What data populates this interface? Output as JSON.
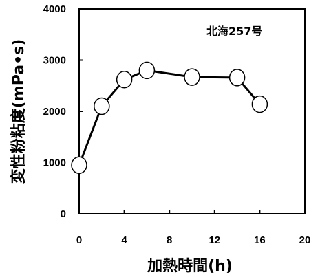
{
  "chart_data": {
    "type": "line",
    "annotation": "北海257号",
    "xlabel": "加熱時間(h)",
    "ylabel": "変性粉粘度(mPa•s)",
    "xlim": [
      0,
      20
    ],
    "ylim": [
      0,
      4000
    ],
    "xticks": [
      0,
      4,
      8,
      12,
      16,
      20
    ],
    "yticks": [
      0,
      1000,
      2000,
      3000,
      4000
    ],
    "grid": false,
    "marker": "open-circle",
    "series": [
      {
        "x": [
          0,
          2,
          4,
          6,
          10,
          14,
          16
        ],
        "y": [
          950,
          2100,
          2620,
          2800,
          2670,
          2660,
          2140
        ]
      }
    ]
  }
}
